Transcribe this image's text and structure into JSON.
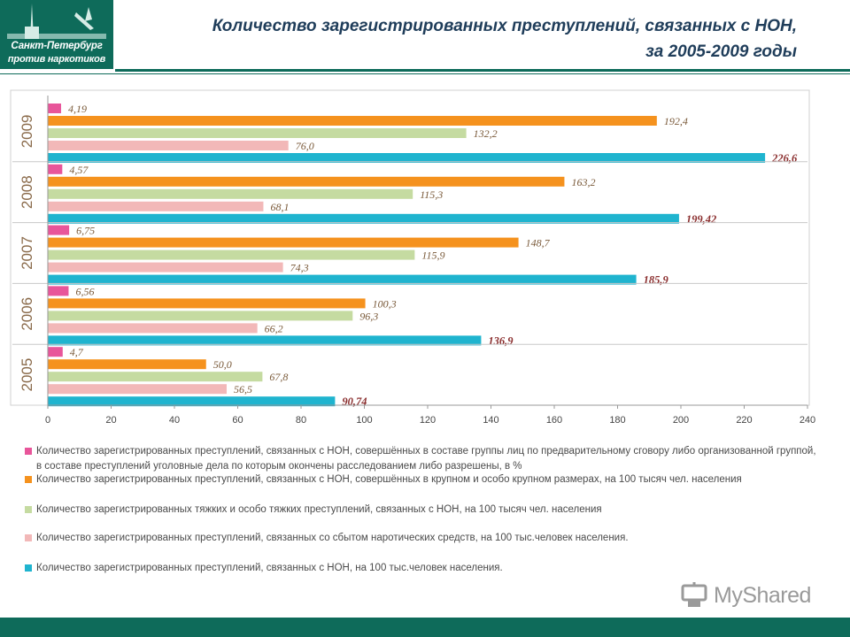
{
  "header": {
    "logo_line1": "Санкт-Петербург",
    "logo_line2": "против наркотиков",
    "title_line1": "Количество зарегистрированных преступлений, связанных с НОН,",
    "title_line2": "за 2005-2009 годы"
  },
  "watermark": {
    "text": "MyShared",
    "icon": "projector-icon"
  },
  "colors": {
    "brand": "#0e6b5a",
    "title": "#1f3d5a",
    "label": "#7a5a3a",
    "label_bold": "#8b2f2f"
  },
  "chart_data": {
    "type": "bar",
    "orientation": "horizontal",
    "categories": [
      "2005",
      "2006",
      "2007",
      "2008",
      "2009"
    ],
    "xlim": [
      0,
      240
    ],
    "xticks": [
      "0",
      "20",
      "40",
      "60",
      "80",
      "100",
      "120",
      "140",
      "160",
      "180",
      "200",
      "220",
      "240"
    ],
    "xtick_values": [
      0,
      20,
      40,
      60,
      80,
      100,
      120,
      140,
      160,
      180,
      200,
      220,
      240
    ],
    "grid": false,
    "legend_position": "bottom",
    "series": [
      {
        "name": "Количество зарегистрированных преступлений, связанных с НОН, совершённых в составе группы лиц по предварительному сговору либо организованной группой, в составе преступлений уголовные дела по которым окончены расследованием либо разрешены, в %",
        "color": "#e8559a",
        "values": [
          4.7,
          6.56,
          6.75,
          4.57,
          4.19
        ],
        "labels": [
          "4,7",
          "6,56",
          "6,75",
          "4,57",
          "4,19"
        ]
      },
      {
        "name": "Количество зарегистрированных преступлений, связанных с НОН, совершённых  в крупном и особо крупном размерах, на 100 тысяч чел. населения",
        "color": "#f5921e",
        "values": [
          50.0,
          100.3,
          148.7,
          163.2,
          192.4
        ],
        "labels": [
          "50,0",
          "100,3",
          "148,7",
          "163,2",
          "192,4"
        ]
      },
      {
        "name": "Количество зарегистрированных тяжких и особо тяжких преступлений, связанных с НОН,  на 100 тысяч чел. населения",
        "color": "#c5dba1",
        "values": [
          67.8,
          96.3,
          115.9,
          115.3,
          132.2
        ],
        "labels": [
          "67,8",
          "96,3",
          "115,9",
          "115,3",
          "132,2"
        ]
      },
      {
        "name": "Количество зарегистрированных преступлений, связанных со сбытом наротических средств, на 100 тыс.человек населения.",
        "color": "#f2b8b8",
        "values": [
          56.5,
          66.2,
          74.3,
          68.1,
          76.0
        ],
        "labels": [
          "56,5",
          "66,2",
          "74,3",
          "68,1",
          "76,0"
        ]
      },
      {
        "name": "Количество зарегистрированных преступлений, связанных с НОН,  на 100 тыс.человек населения.",
        "color": "#1fb4cf",
        "values": [
          90.74,
          136.9,
          185.9,
          199.42,
          226.6
        ],
        "labels": [
          "90,74",
          "136,9",
          "185,9",
          "199,42",
          "226,6"
        ],
        "labels_bold": true
      }
    ]
  }
}
